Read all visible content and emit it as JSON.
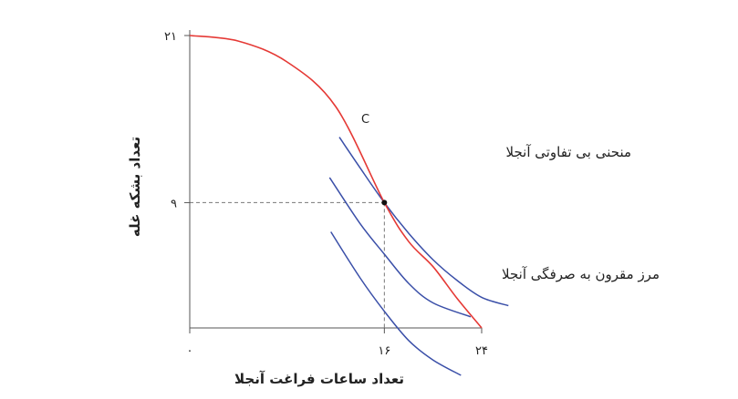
{
  "chart_data": {
    "type": "line",
    "xlabel": "تعداد ساعات فراغت آنجلا",
    "ylabel": "تعداد بشکه غله",
    "xlim": [
      0,
      24
    ],
    "ylim": [
      0,
      21
    ],
    "x_ticks": [
      {
        "value": 0,
        "label": "۰"
      },
      {
        "value": 16,
        "label": "۱۶"
      },
      {
        "value": 24,
        "label": "۲۴"
      }
    ],
    "y_ticks": [
      {
        "value": 9,
        "label": "۹"
      },
      {
        "value": 21,
        "label": "۲۱"
      }
    ],
    "grid": false,
    "frontier": {
      "label": "مرز مقرون به صرفگی آنجلا",
      "color": "#e53935",
      "points": [
        [
          0,
          21
        ],
        [
          4,
          20.6
        ],
        [
          8,
          19.1
        ],
        [
          12,
          15.9
        ],
        [
          16,
          9
        ],
        [
          18,
          6.2
        ],
        [
          20,
          4.4
        ],
        [
          22,
          2.1
        ],
        [
          24,
          0
        ]
      ]
    },
    "indifference_curves": {
      "label": "منحنی بی تفاوتی آنجلا",
      "color": "#3a4fa8",
      "series": [
        {
          "points": [
            [
              11.6,
              6.9
            ],
            [
              14,
              3.6
            ],
            [
              16,
              1.2
            ],
            [
              18,
              -0.9
            ],
            [
              20,
              -2.3
            ],
            [
              22.3,
              -3.4
            ]
          ]
        },
        {
          "points": [
            [
              11.5,
              10.8
            ],
            [
              14,
              7.5
            ],
            [
              16,
              5.3
            ],
            [
              18,
              3.2
            ],
            [
              20,
              1.8
            ],
            [
              23.1,
              0.8
            ]
          ]
        },
        {
          "points": [
            [
              12.3,
              13.7
            ],
            [
              14,
              11.5
            ],
            [
              16,
              9
            ],
            [
              18,
              6.8
            ],
            [
              20,
              4.9
            ],
            [
              22,
              3.4
            ],
            [
              24,
              2.2
            ],
            [
              26.2,
              1.6
            ]
          ]
        }
      ]
    },
    "point": {
      "label": "C",
      "x": 16,
      "y": 9
    }
  }
}
